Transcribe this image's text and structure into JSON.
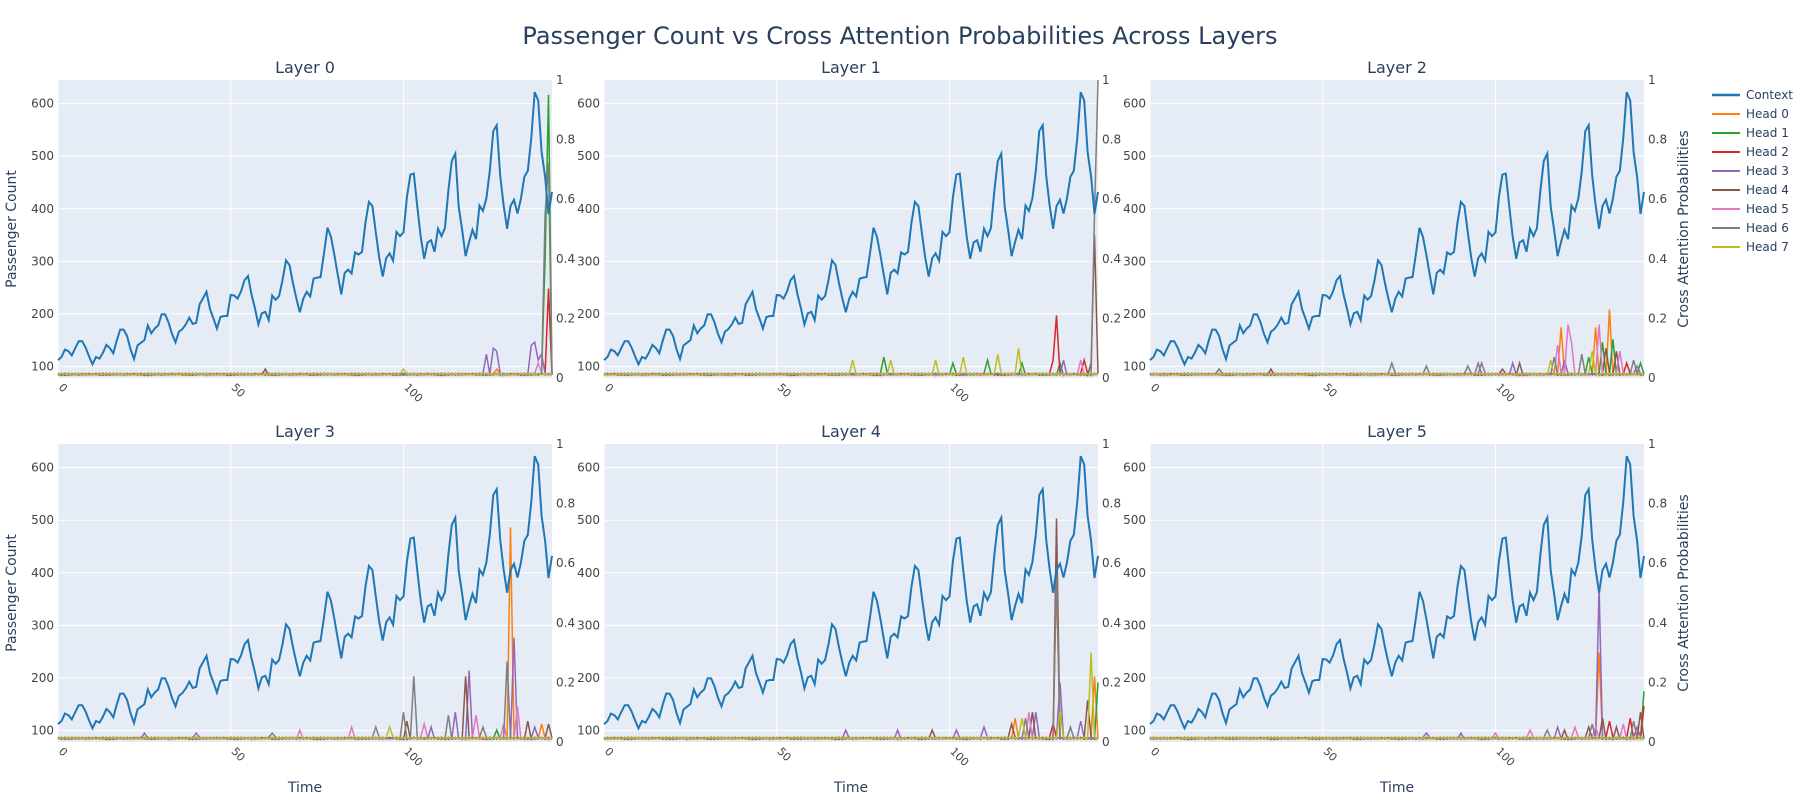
{
  "title": "Passenger Count vs Cross Attention Probabilities Across Layers",
  "xlabel": "Time",
  "ylabel_left": "Passenger Count",
  "ylabel_right": "Cross Attention Probabilities",
  "colors": {
    "context": "#1f77b4",
    "heads": [
      "#ff7f0e",
      "#2ca02c",
      "#d62728",
      "#9467bd",
      "#8c564b",
      "#e377c2",
      "#7f7f7f",
      "#bcbd22"
    ],
    "plot_bg": "#e5ecf6",
    "grid": "#ffffff",
    "text": "#2a3f5f",
    "tick": "#444444"
  },
  "legend": {
    "position": "top-right",
    "entries": [
      "Context",
      "Head 0",
      "Head 1",
      "Head 2",
      "Head 3",
      "Head 4",
      "Head 5",
      "Head 6",
      "Head 7"
    ]
  },
  "chart_data": {
    "type": "line",
    "x_ticks": [
      0,
      50,
      100
    ],
    "xlim": [
      0,
      143
    ],
    "y_left_ticks": [
      100,
      200,
      300,
      400,
      500,
      600
    ],
    "y_left_range": [
      78,
      645
    ],
    "y_right_ticks": [
      "0",
      "0.2",
      "0.4",
      "0.6",
      "0.8",
      "1"
    ],
    "y_right_range": [
      0,
      1
    ],
    "context_series": {
      "name": "Context",
      "x_start": 0,
      "values": [
        112,
        118,
        132,
        129,
        121,
        135,
        148,
        148,
        136,
        119,
        104,
        118,
        115,
        126,
        141,
        135,
        125,
        149,
        170,
        170,
        158,
        133,
        114,
        140,
        145,
        150,
        178,
        163,
        172,
        178,
        199,
        199,
        184,
        162,
        146,
        166,
        171,
        180,
        193,
        181,
        183,
        218,
        230,
        242,
        209,
        191,
        172,
        194,
        196,
        196,
        236,
        235,
        229,
        243,
        264,
        272,
        237,
        211,
        180,
        201,
        204,
        188,
        235,
        227,
        234,
        264,
        302,
        293,
        259,
        229,
        203,
        229,
        242,
        233,
        267,
        269,
        270,
        315,
        364,
        347,
        312,
        274,
        237,
        278,
        284,
        277,
        317,
        313,
        318,
        374,
        413,
        405,
        355,
        306,
        271,
        306,
        315,
        301,
        356,
        348,
        355,
        422,
        465,
        467,
        404,
        347,
        305,
        336,
        340,
        318,
        362,
        348,
        363,
        435,
        491,
        505,
        404,
        359,
        310,
        337,
        360,
        342,
        406,
        396,
        420,
        472,
        548,
        559,
        463,
        407,
        362,
        405,
        417,
        391,
        419,
        461,
        472,
        535,
        622,
        606,
        508,
        461,
        390,
        432
      ]
    },
    "subplots": [
      {
        "title": "Layer 0",
        "spikes": [
          [
            124,
            3,
            0.08
          ],
          [
            126,
            3,
            0.1
          ],
          [
            127,
            3,
            0.09
          ],
          [
            137,
            3,
            0.11
          ],
          [
            138,
            3,
            0.12
          ],
          [
            139,
            3,
            0.06
          ],
          [
            140,
            3,
            0.08
          ],
          [
            141,
            6,
            0.55
          ],
          [
            142,
            6,
            0.72
          ],
          [
            142,
            1,
            0.95
          ],
          [
            141,
            1,
            0.4
          ],
          [
            142,
            2,
            0.3
          ],
          [
            139,
            5,
            0.05
          ],
          [
            127,
            0,
            0.03
          ],
          [
            100,
            7,
            0.03
          ],
          [
            60,
            4,
            0.03
          ]
        ]
      },
      {
        "title": "Layer 1",
        "spikes": [
          [
            72,
            7,
            0.06
          ],
          [
            81,
            1,
            0.07
          ],
          [
            83,
            7,
            0.06
          ],
          [
            96,
            7,
            0.06
          ],
          [
            101,
            1,
            0.05
          ],
          [
            104,
            7,
            0.07
          ],
          [
            111,
            1,
            0.06
          ],
          [
            114,
            7,
            0.08
          ],
          [
            120,
            7,
            0.1
          ],
          [
            121,
            1,
            0.05
          ],
          [
            130,
            2,
            0.06
          ],
          [
            131,
            2,
            0.21
          ],
          [
            132,
            1,
            0.05
          ],
          [
            133,
            3,
            0.06
          ],
          [
            138,
            5,
            0.06
          ],
          [
            139,
            2,
            0.06
          ],
          [
            141,
            4,
            0.05
          ],
          [
            142,
            4,
            0.48
          ],
          [
            142,
            6,
            0.55
          ],
          [
            143,
            6,
            1.0
          ]
        ]
      },
      {
        "title": "Layer 2",
        "spikes": [
          [
            20,
            6,
            0.03
          ],
          [
            35,
            4,
            0.03
          ],
          [
            70,
            6,
            0.05
          ],
          [
            80,
            6,
            0.04
          ],
          [
            92,
            6,
            0.04
          ],
          [
            95,
            3,
            0.05
          ],
          [
            96,
            6,
            0.05
          ],
          [
            102,
            4,
            0.03
          ],
          [
            105,
            3,
            0.05
          ],
          [
            107,
            4,
            0.05
          ],
          [
            116,
            7,
            0.06
          ],
          [
            117,
            6,
            0.07
          ],
          [
            118,
            5,
            0.11
          ],
          [
            119,
            0,
            0.17
          ],
          [
            120,
            3,
            0.06
          ],
          [
            121,
            5,
            0.18
          ],
          [
            122,
            5,
            0.12
          ],
          [
            125,
            6,
            0.08
          ],
          [
            127,
            1,
            0.07
          ],
          [
            128,
            7,
            0.09
          ],
          [
            129,
            0,
            0.17
          ],
          [
            130,
            5,
            0.18
          ],
          [
            131,
            1,
            0.12
          ],
          [
            132,
            4,
            0.1
          ],
          [
            133,
            0,
            0.23
          ],
          [
            134,
            1,
            0.13
          ],
          [
            135,
            4,
            0.09
          ],
          [
            136,
            5,
            0.09
          ],
          [
            138,
            2,
            0.05
          ],
          [
            140,
            6,
            0.06
          ],
          [
            141,
            3,
            0.04
          ],
          [
            142,
            1,
            0.05
          ]
        ]
      },
      {
        "title": "Layer 3",
        "spikes": [
          [
            25,
            3,
            0.03
          ],
          [
            40,
            3,
            0.03
          ],
          [
            62,
            6,
            0.03
          ],
          [
            70,
            5,
            0.04
          ],
          [
            85,
            5,
            0.05
          ],
          [
            92,
            6,
            0.05
          ],
          [
            96,
            7,
            0.05
          ],
          [
            100,
            6,
            0.1
          ],
          [
            101,
            4,
            0.07
          ],
          [
            103,
            6,
            0.22
          ],
          [
            106,
            5,
            0.06
          ],
          [
            108,
            3,
            0.05
          ],
          [
            113,
            6,
            0.09
          ],
          [
            115,
            3,
            0.1
          ],
          [
            118,
            4,
            0.22
          ],
          [
            119,
            3,
            0.24
          ],
          [
            121,
            5,
            0.09
          ],
          [
            123,
            6,
            0.05
          ],
          [
            127,
            1,
            0.04
          ],
          [
            129,
            5,
            0.06
          ],
          [
            130,
            6,
            0.27
          ],
          [
            131,
            0,
            0.72
          ],
          [
            132,
            3,
            0.35
          ],
          [
            133,
            5,
            0.12
          ],
          [
            136,
            4,
            0.07
          ],
          [
            138,
            3,
            0.05
          ],
          [
            140,
            0,
            0.06
          ],
          [
            142,
            4,
            0.06
          ]
        ]
      },
      {
        "title": "Layer 4",
        "spikes": [
          [
            70,
            3,
            0.04
          ],
          [
            85,
            3,
            0.04
          ],
          [
            95,
            4,
            0.04
          ],
          [
            102,
            3,
            0.04
          ],
          [
            110,
            3,
            0.05
          ],
          [
            118,
            4,
            0.06
          ],
          [
            119,
            0,
            0.08
          ],
          [
            121,
            7,
            0.08
          ],
          [
            122,
            6,
            0.08
          ],
          [
            123,
            5,
            0.1
          ],
          [
            124,
            4,
            0.1
          ],
          [
            125,
            3,
            0.1
          ],
          [
            124,
            4,
            0.1
          ],
          [
            130,
            2,
            0.06
          ],
          [
            131,
            4,
            0.75
          ],
          [
            131,
            6,
            0.58
          ],
          [
            131,
            0,
            0.55
          ],
          [
            132,
            7,
            0.1
          ],
          [
            132,
            3,
            0.2
          ],
          [
            135,
            6,
            0.05
          ],
          [
            138,
            3,
            0.07
          ],
          [
            140,
            4,
            0.14
          ],
          [
            141,
            7,
            0.3
          ],
          [
            142,
            0,
            0.22
          ],
          [
            143,
            1,
            0.2
          ]
        ]
      },
      {
        "title": "Layer 5",
        "spikes": [
          [
            80,
            3,
            0.03
          ],
          [
            90,
            3,
            0.03
          ],
          [
            100,
            5,
            0.03
          ],
          [
            110,
            5,
            0.04
          ],
          [
            115,
            6,
            0.04
          ],
          [
            118,
            3,
            0.05
          ],
          [
            120,
            4,
            0.04
          ],
          [
            123,
            5,
            0.05
          ],
          [
            127,
            4,
            0.05
          ],
          [
            128,
            6,
            0.06
          ],
          [
            129,
            5,
            0.05
          ],
          [
            130,
            3,
            0.52
          ],
          [
            130,
            0,
            0.3
          ],
          [
            131,
            4,
            0.08
          ],
          [
            133,
            2,
            0.07
          ],
          [
            135,
            4,
            0.05
          ],
          [
            137,
            5,
            0.06
          ],
          [
            139,
            2,
            0.08
          ],
          [
            140,
            6,
            0.07
          ],
          [
            141,
            3,
            0.05
          ],
          [
            142,
            4,
            0.1
          ],
          [
            143,
            1,
            0.17
          ],
          [
            143,
            2,
            0.12
          ]
        ]
      }
    ]
  }
}
